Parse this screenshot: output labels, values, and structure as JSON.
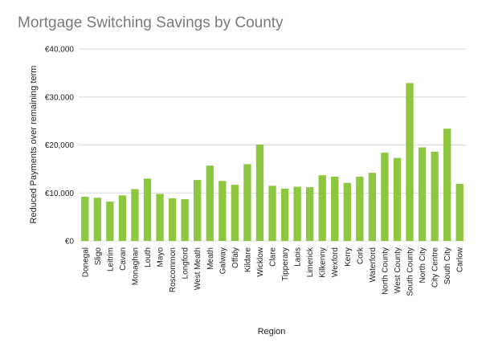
{
  "chart_data": {
    "type": "bar",
    "title": "Mortgage Switching Savings by County",
    "xlabel": "Region",
    "ylabel": "Reduced Payments over remaining term",
    "ylim": [
      0,
      40000
    ],
    "yticks": [
      0,
      10000,
      20000,
      30000,
      40000
    ],
    "ytick_labels": [
      "€0",
      "€10,000",
      "€20,000",
      "€30,000",
      "€40,000"
    ],
    "grid": true,
    "bar_color": "#8dc63f",
    "categories": [
      "Donegal",
      "Sligo",
      "Leitrim",
      "Cavan",
      "Monaghan",
      "Louth",
      "Mayo",
      "Roscommon",
      "Longford",
      "West Meath",
      "Meath",
      "Galway",
      "Offaly",
      "Kildare",
      "Wicklow",
      "Clare",
      "Tipperary",
      "Laois",
      "Limerick",
      "Kilkenny",
      "Wexford",
      "Kerry",
      "Cork",
      "Waterford",
      "North County",
      "West County",
      "South County",
      "North City",
      "City Centre",
      "South City",
      "Carlow"
    ],
    "values": [
      9200,
      9000,
      8200,
      9500,
      10800,
      13000,
      9800,
      8900,
      8700,
      12700,
      15700,
      12500,
      11700,
      16000,
      20100,
      11500,
      10900,
      11300,
      11200,
      13700,
      13400,
      12100,
      13400,
      14200,
      18400,
      17300,
      32900,
      19500,
      18600,
      23400,
      11900
    ]
  }
}
